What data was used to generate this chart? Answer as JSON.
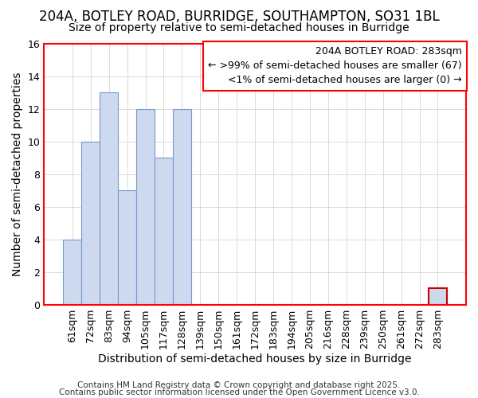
{
  "title": "204A, BOTLEY ROAD, BURRIDGE, SOUTHAMPTON, SO31 1BL",
  "subtitle": "Size of property relative to semi-detached houses in Burridge",
  "xlabel": "Distribution of semi-detached houses by size in Burridge",
  "ylabel": "Number of semi-detached properties",
  "categories": [
    "61sqm",
    "72sqm",
    "83sqm",
    "94sqm",
    "105sqm",
    "117sqm",
    "128sqm",
    "139sqm",
    "150sqm",
    "161sqm",
    "172sqm",
    "183sqm",
    "194sqm",
    "205sqm",
    "216sqm",
    "228sqm",
    "239sqm",
    "250sqm",
    "261sqm",
    "272sqm",
    "283sqm"
  ],
  "values": [
    4,
    10,
    13,
    7,
    12,
    9,
    12,
    0,
    0,
    0,
    0,
    0,
    0,
    0,
    0,
    0,
    0,
    0,
    0,
    0,
    1
  ],
  "bar_color_normal": "#ccd9ee",
  "bar_edge_normal": "#7799cc",
  "bar_edge_highlight": "#cc0000",
  "highlight_index": 20,
  "ylim": [
    0,
    16
  ],
  "yticks": [
    0,
    2,
    4,
    6,
    8,
    10,
    12,
    14,
    16
  ],
  "legend_title": "204A BOTLEY ROAD: 283sqm",
  "legend_line1": "← >99% of semi-detached houses are smaller (67)",
  "legend_line2": "<1% of semi-detached houses are larger (0) →",
  "footer_line1": "Contains HM Land Registry data © Crown copyright and database right 2025.",
  "footer_line2": "Contains public sector information licensed under the Open Government Licence v3.0.",
  "bg_color": "#ffffff",
  "plot_bg_color": "#ffffff",
  "title_fontsize": 12,
  "subtitle_fontsize": 10,
  "axis_label_fontsize": 10,
  "tick_fontsize": 9,
  "legend_fontsize": 9,
  "footer_fontsize": 7.5
}
